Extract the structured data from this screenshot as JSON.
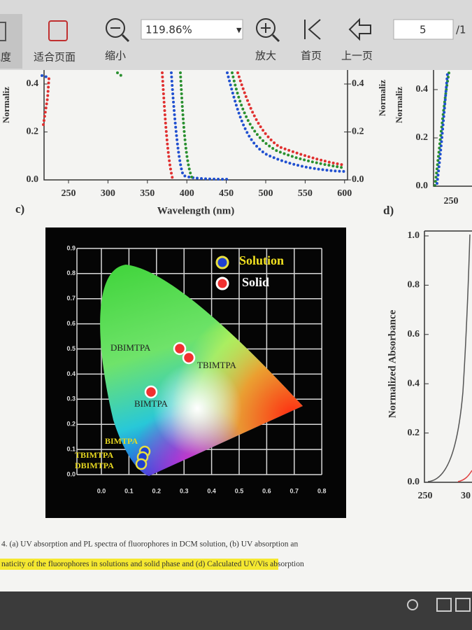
{
  "toolbar": {
    "fit_width": "宽度",
    "fit_page": "适合页面",
    "zoom_out": "缩小",
    "zoom_value": "119.86%",
    "zoom_in": "放大",
    "first_page": "首页",
    "prev_page": "上一页",
    "page_number": "5",
    "page_total": "/1"
  },
  "figure": {
    "panel_a": {
      "y_label": "Normaliz",
      "y_ticks": [
        "0.4",
        "0.2",
        "0.0"
      ],
      "y2_label": "Normaliz",
      "y2_ticks": [
        "0.4",
        "0.2",
        "0.0"
      ],
      "x_ticks": [
        "250",
        "300",
        "350",
        "400",
        "450",
        "500",
        "550",
        "600"
      ],
      "x_label": "Wavelength (nm)"
    },
    "panel_b": {
      "y_label": "Normaliz",
      "y_ticks": [
        "0.4",
        "0.2",
        "0.0"
      ],
      "x_ticks": [
        "250"
      ]
    },
    "panel_c": {
      "label": "c)",
      "x_ticks": [
        "0.0",
        "0.1",
        "0.2",
        "0.3",
        "0.4",
        "0.5",
        "0.6",
        "0.7",
        "0.8"
      ],
      "y_ticks": [
        "0.0",
        "0.1",
        "0.2",
        "0.3",
        "0.4",
        "0.5",
        "0.6",
        "0.7",
        "0.8",
        "0.9"
      ],
      "legend": [
        "Solution",
        "Solid"
      ],
      "solid_labels": [
        "DBIMTPA",
        "TBIMTPA",
        "BIMTPA"
      ],
      "solution_labels": [
        "BIMTPA",
        "TBIMTPA",
        "DBIMTPA"
      ]
    },
    "panel_d": {
      "label": "d)",
      "y_label": "Normalized Absorbance",
      "y_ticks": [
        "0.0",
        "0.2",
        "0.4",
        "0.6",
        "0.8",
        "1.0"
      ],
      "x_ticks": [
        "250",
        "30"
      ]
    }
  },
  "caption": {
    "line1": "4. (a) UV absorption and PL spectra of fluorophores in DCM solution, (b) UV absorption an",
    "line2_highlight": "naticity of the fluorophores in solutions and solid phase",
    "line2_rest": " and (d) Calculated UV/Vis absorption"
  }
}
